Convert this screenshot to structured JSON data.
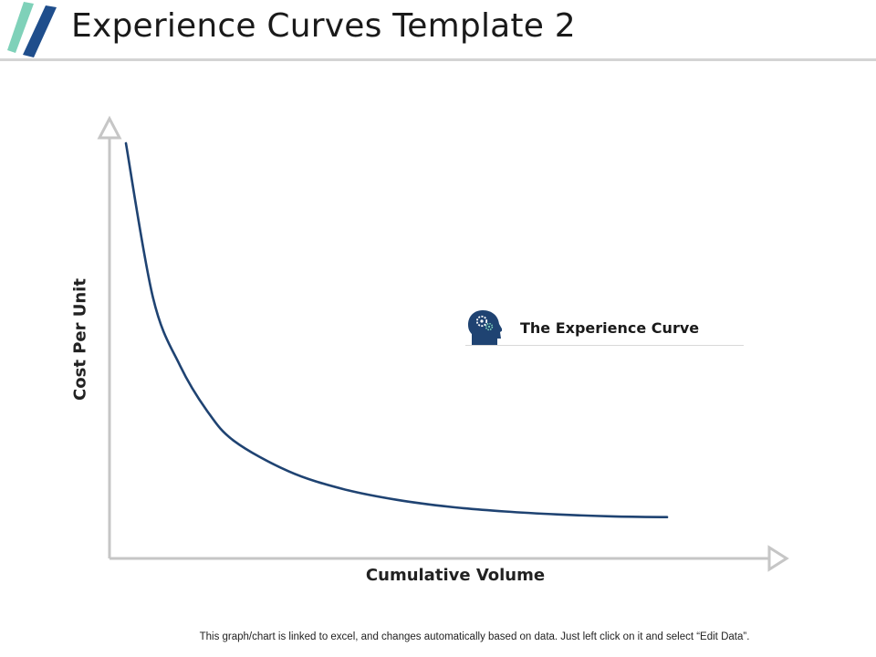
{
  "header": {
    "title": "Experience Curves Template 2",
    "logo_colors": [
      "#7fd1b9",
      "#1f4e8c"
    ]
  },
  "chart_data": {
    "type": "line",
    "title": "",
    "xlabel": "Cumulative Volume",
    "ylabel": "Cost Per Unit",
    "x": [
      0.0,
      0.05,
      0.1,
      0.15,
      0.2,
      0.3,
      0.4,
      0.5,
      0.6,
      0.7,
      0.8,
      0.9,
      1.0
    ],
    "series": [
      {
        "name": "",
        "values": [
          1.0,
          0.59,
          0.41,
          0.29,
          0.21,
          0.13,
          0.083,
          0.054,
          0.035,
          0.023,
          0.015,
          0.01,
          0.008
        ],
        "color": "#1f4372"
      }
    ],
    "xlim": [
      0,
      1
    ],
    "ylim": [
      0,
      1
    ],
    "grid": false,
    "axis_color": "#c6c6c6"
  },
  "callout": {
    "label": "The Experience Curve",
    "icon": "head-gears-icon",
    "icon_color": "#1f4372"
  },
  "footer": {
    "note": "This graph/chart is linked to excel, and changes automatically based on data. Just left click on it and select “Edit Data”."
  }
}
